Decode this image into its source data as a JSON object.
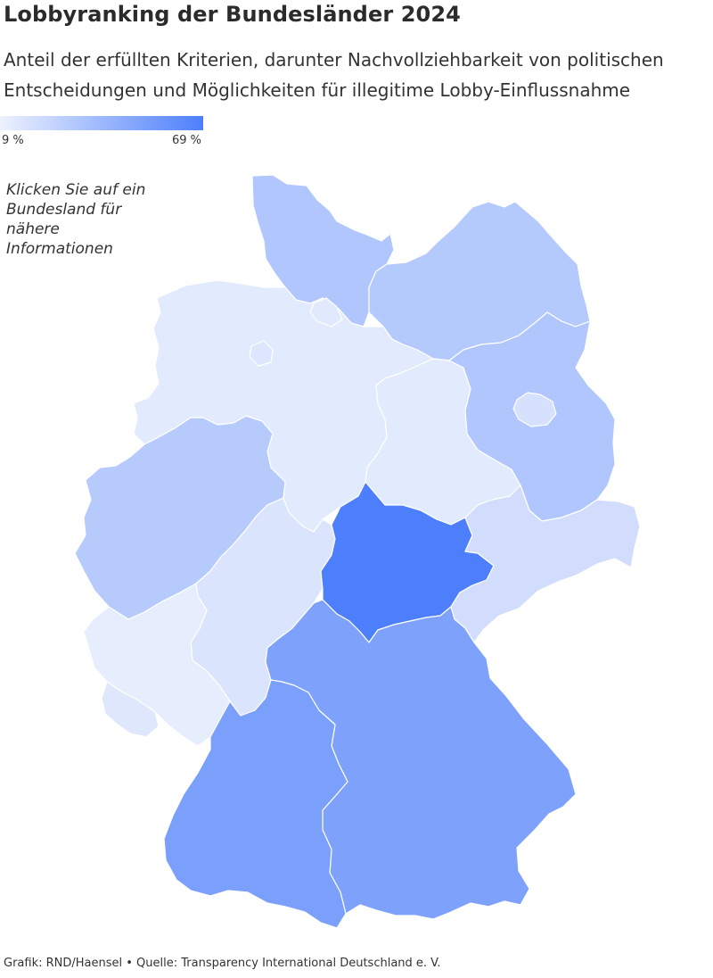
{
  "header": {
    "title": "Lobbyranking der Bundesländer 2024",
    "subtitle": "Anteil der erfüllten Kriterien, darunter Nachvollziehbarkeit von politischen Entscheidungen und Möglichkeiten für illegitime Lobby-Einflussnahme"
  },
  "legend": {
    "min_label": "9 %",
    "max_label": "69 %",
    "min_color": "#eef2fd",
    "max_color": "#4d7ffc"
  },
  "map": {
    "hint": "Klicken Sie auf ein Bundesland für nähere Informationen",
    "regions": [
      {
        "id": "schleswig-holstein",
        "color": "#b0c6fc"
      },
      {
        "id": "hamburg",
        "color": "#e1e9fd"
      },
      {
        "id": "mecklenburg-vorpommern",
        "color": "#b4c9fc"
      },
      {
        "id": "bremen",
        "color": "#dde6fd"
      },
      {
        "id": "niedersachsen",
        "color": "#e2eafd"
      },
      {
        "id": "brandenburg",
        "color": "#b0c6fc"
      },
      {
        "id": "berlin",
        "color": "#d6e1fd"
      },
      {
        "id": "sachsen-anhalt",
        "color": "#e2eafd"
      },
      {
        "id": "nordrhein-westfalen",
        "color": "#b6cbfc"
      },
      {
        "id": "hessen",
        "color": "#dae4fd"
      },
      {
        "id": "thueringen",
        "color": "#4d7ffc"
      },
      {
        "id": "sachsen",
        "color": "#d2ddfd"
      },
      {
        "id": "rheinland-pfalz",
        "color": "#e6edfd"
      },
      {
        "id": "saarland",
        "color": "#dfe7fd"
      },
      {
        "id": "bayern",
        "color": "#7ea1fc"
      },
      {
        "id": "baden-wuerttemberg",
        "color": "#7ba0fc"
      }
    ]
  },
  "footer": {
    "text": "Grafik: RND/Haensel • Quelle: Transparency International Deutschland e. V."
  }
}
